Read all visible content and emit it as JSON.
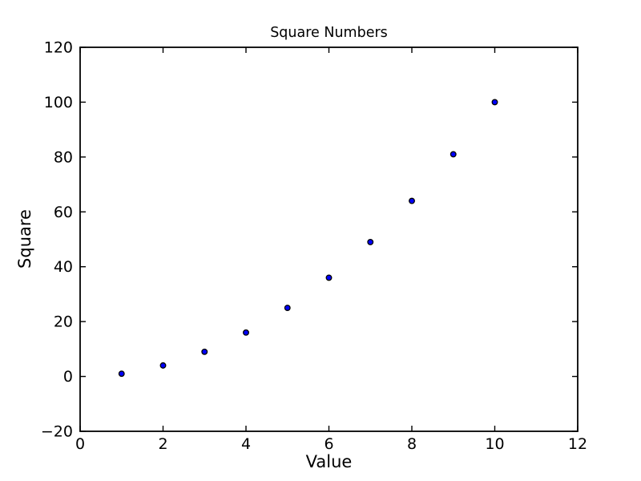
{
  "figure": {
    "background": "#ffffff"
  },
  "chart_data": {
    "type": "scatter",
    "title": "Square Numbers",
    "xlabel": "Value",
    "ylabel": "Square",
    "x": [
      1,
      2,
      3,
      4,
      5,
      6,
      7,
      8,
      9,
      10
    ],
    "y": [
      1,
      4,
      9,
      16,
      25,
      36,
      49,
      64,
      81,
      100
    ],
    "xlim": [
      0,
      12
    ],
    "ylim": [
      -20,
      120
    ],
    "xtick_values": [
      0,
      2,
      4,
      6,
      8,
      10,
      12
    ],
    "xtick_labels": [
      "0",
      "2",
      "4",
      "6",
      "8",
      "10",
      "12"
    ],
    "ytick_values": [
      -20,
      0,
      20,
      40,
      60,
      80,
      100,
      120
    ],
    "ytick_labels": [
      "−20",
      "0",
      "20",
      "40",
      "60",
      "80",
      "100",
      "120"
    ],
    "grid": false,
    "legend_visible": false,
    "tick_direction": "in",
    "colors": {
      "marker_fill": "#0000ff",
      "marker_edge": "#000000",
      "axis": "#000000",
      "text": "#000000",
      "background": "#ffffff"
    }
  }
}
